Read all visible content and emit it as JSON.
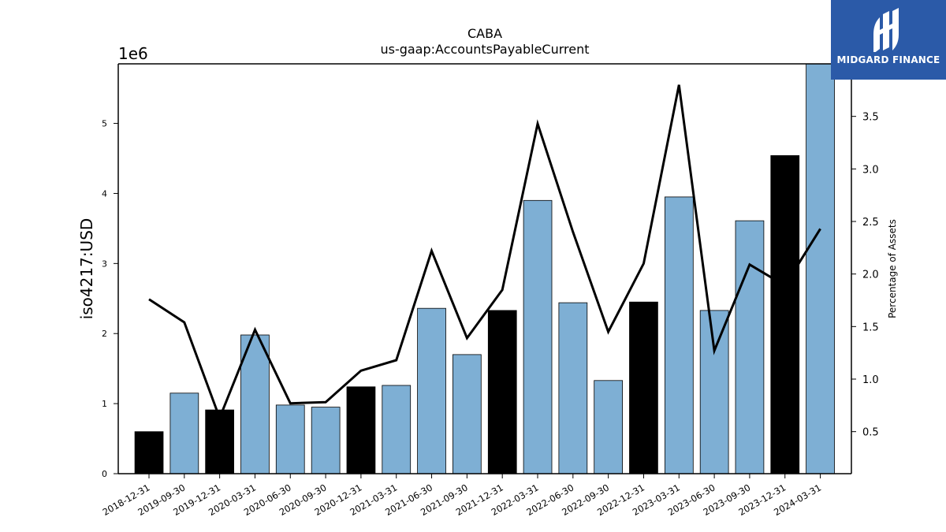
{
  "chart_data": {
    "type": "bar",
    "title": "CABA",
    "subtitle": "us-gaap:AccountsPayableCurrent",
    "ylabel": "iso4217:USD",
    "y_offset_label": "1e6",
    "y2label": "Percentage of Assets",
    "ylim": [
      0,
      5850000
    ],
    "y2lim": [
      0.1,
      4.0
    ],
    "yticks": [
      "0",
      "1",
      "2",
      "3",
      "4",
      "5"
    ],
    "y2ticks": [
      "0.5",
      "1.0",
      "1.5",
      "2.0",
      "2.5",
      "3.0",
      "3.5"
    ],
    "categories": [
      "2018-12-31",
      "2019-09-30",
      "2019-12-31",
      "2020-03-31",
      "2020-06-30",
      "2020-09-30",
      "2020-12-31",
      "2021-03-31",
      "2021-06-30",
      "2021-09-30",
      "2021-12-31",
      "2022-03-31",
      "2022-06-30",
      "2022-09-30",
      "2022-12-31",
      "2023-03-31",
      "2023-06-30",
      "2023-09-30",
      "2023-12-31",
      "2024-03-31"
    ],
    "series": [
      {
        "kind": "bar",
        "values": [
          600000,
          1150000,
          910000,
          1980000,
          980000,
          950000,
          1240000,
          1260000,
          2360000,
          1700000,
          2330000,
          3900000,
          2440000,
          1330000,
          2450000,
          3950000,
          2330000,
          3610000,
          4540000,
          5850000
        ],
        "colors": [
          "#000000",
          "#7eafd4",
          "#000000",
          "#7eafd4",
          "#7eafd4",
          "#7eafd4",
          "#000000",
          "#7eafd4",
          "#7eafd4",
          "#7eafd4",
          "#000000",
          "#7eafd4",
          "#7eafd4",
          "#7eafd4",
          "#000000",
          "#7eafd4",
          "#7eafd4",
          "#7eafd4",
          "#000000",
          "#7eafd4"
        ]
      },
      {
        "kind": "line",
        "axis": "right",
        "color": "#000000",
        "values": [
          1.76,
          1.54,
          0.63,
          1.47,
          0.77,
          0.78,
          1.08,
          1.18,
          2.22,
          1.39,
          1.85,
          3.43,
          2.4,
          1.45,
          2.1,
          3.8,
          1.27,
          2.09,
          1.89,
          2.43
        ]
      }
    ]
  },
  "logo": {
    "text": "MIDGARD FINANCE",
    "bg": "#2b5aa8"
  }
}
